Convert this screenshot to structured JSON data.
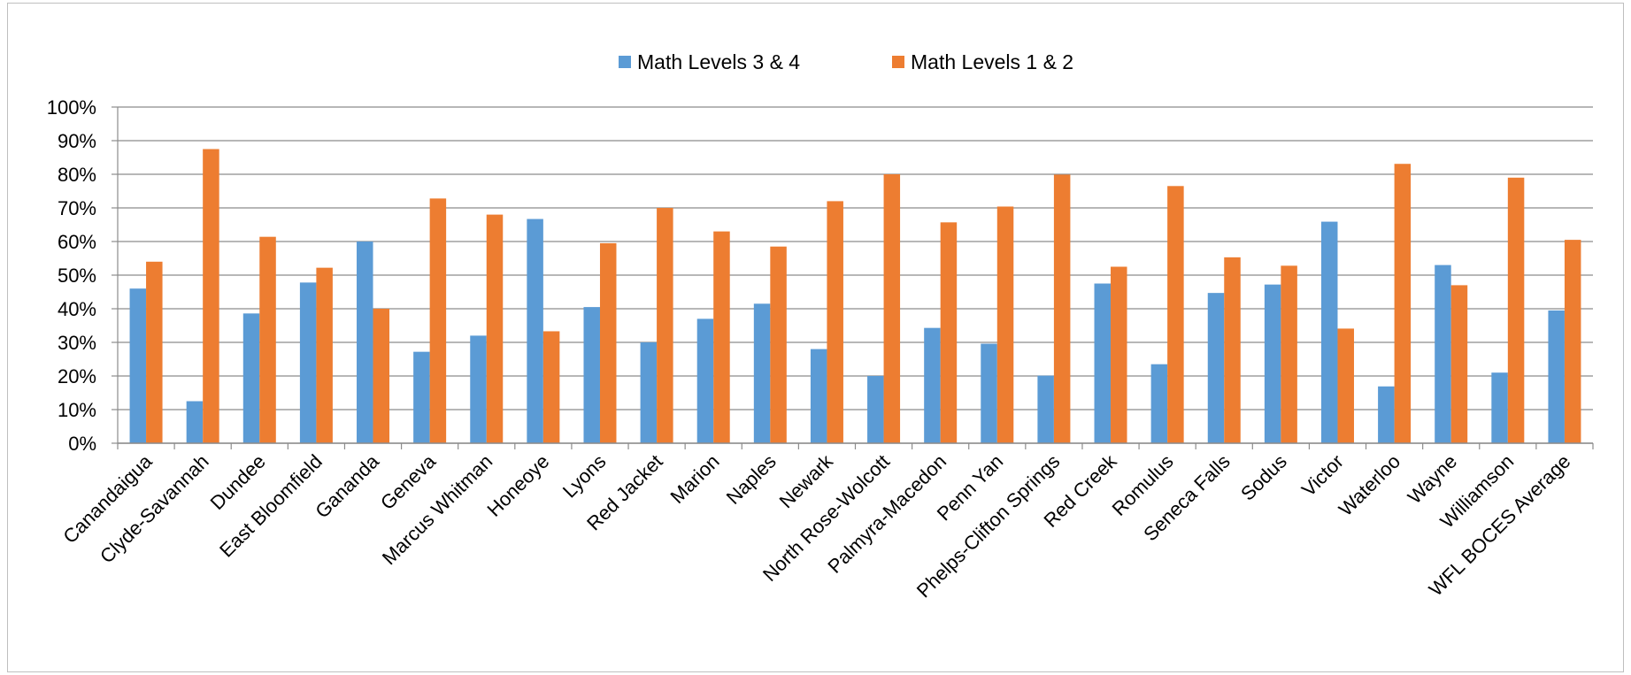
{
  "chart_data": {
    "type": "bar",
    "title": "",
    "xlabel": "",
    "ylabel": "",
    "ylim": [
      0,
      100
    ],
    "ytick_step": 10,
    "ytick_suffix": "%",
    "grid": true,
    "legend_position": "top",
    "categories": [
      "Canandaigua",
      "Clyde-Savannah",
      "Dundee",
      "East Bloomfield",
      "Gananda",
      "Geneva",
      "Marcus Whitman",
      "Honeoye",
      "Lyons",
      "Red Jacket",
      "Marion",
      "Naples",
      "Newark",
      "North Rose-Wolcott",
      "Palmyra-Macedon",
      "Penn Yan",
      "Phelps-Clifton Springs",
      "Red Creek",
      "Romulus",
      "Seneca Falls",
      "Sodus",
      "Victor",
      "Waterloo",
      "Wayne",
      "Williamson",
      "WFL BOCES Average"
    ],
    "series": [
      {
        "name": "Math Levels 3 & 4",
        "color": "#5b9bd5",
        "values": [
          46,
          12.5,
          38.6,
          47.8,
          60,
          27.2,
          32,
          66.7,
          40.5,
          30,
          37,
          41.5,
          28,
          20,
          34.3,
          29.6,
          20.1,
          47.5,
          23.5,
          44.7,
          47.2,
          65.9,
          16.9,
          53,
          21,
          39.5
        ]
      },
      {
        "name": "Math Levels 1 & 2",
        "color": "#ed7d31",
        "values": [
          54,
          87.5,
          61.4,
          52.2,
          40,
          72.8,
          68,
          33.3,
          59.5,
          70,
          63,
          58.5,
          72,
          80,
          65.7,
          70.4,
          79.9,
          52.5,
          76.5,
          55.3,
          52.8,
          34.1,
          83.1,
          47,
          79,
          60.5
        ]
      }
    ]
  }
}
